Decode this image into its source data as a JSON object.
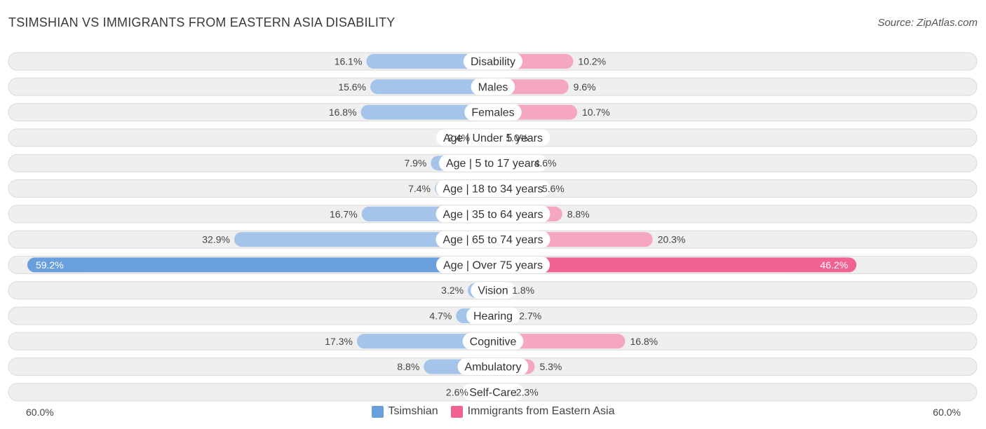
{
  "title": "TSIMSHIAN VS IMMIGRANTS FROM EASTERN ASIA DISABILITY",
  "source": "Source: ZipAtlas.com",
  "colors": {
    "left": "#a4c4ea",
    "left_strong": "#6a9fde",
    "right": "#f5a6c0",
    "right_strong": "#f06291",
    "row_bg": "#efefef",
    "row_border": "#dadada"
  },
  "axis": {
    "left_label": "60.0%",
    "right_label": "60.0%"
  },
  "legend": {
    "left": "Tsimshian",
    "right": "Immigrants from Eastern Asia"
  },
  "chart_data": {
    "type": "bar",
    "orientation": "horizontal-diverging",
    "xlim": [
      0,
      60
    ],
    "categories": [
      "Disability",
      "Males",
      "Females",
      "Age | Under 5 years",
      "Age | 5 to 17 years",
      "Age | 18 to 34 years",
      "Age | 35 to 64 years",
      "Age | 65 to 74 years",
      "Age | Over 75 years",
      "Vision",
      "Hearing",
      "Cognitive",
      "Ambulatory",
      "Self-Care"
    ],
    "series": [
      {
        "name": "Tsimshian",
        "values": [
          16.1,
          15.6,
          16.8,
          2.4,
          7.9,
          7.4,
          16.7,
          32.9,
          59.2,
          3.2,
          4.7,
          17.3,
          8.8,
          2.6
        ],
        "labels": [
          "16.1%",
          "15.6%",
          "16.8%",
          "2.4%",
          "7.9%",
          "7.4%",
          "16.7%",
          "32.9%",
          "59.2%",
          "3.2%",
          "4.7%",
          "17.3%",
          "8.8%",
          "2.6%"
        ]
      },
      {
        "name": "Immigrants from Eastern Asia",
        "values": [
          10.2,
          9.6,
          10.7,
          1.0,
          4.6,
          5.6,
          8.8,
          20.3,
          46.2,
          1.8,
          2.7,
          16.8,
          5.3,
          2.3
        ],
        "labels": [
          "10.2%",
          "9.6%",
          "10.7%",
          "1.0%",
          "4.6%",
          "5.6%",
          "8.8%",
          "20.3%",
          "46.2%",
          "1.8%",
          "2.7%",
          "16.8%",
          "5.3%",
          "2.3%"
        ]
      }
    ],
    "legend_position": "bottom-center"
  }
}
